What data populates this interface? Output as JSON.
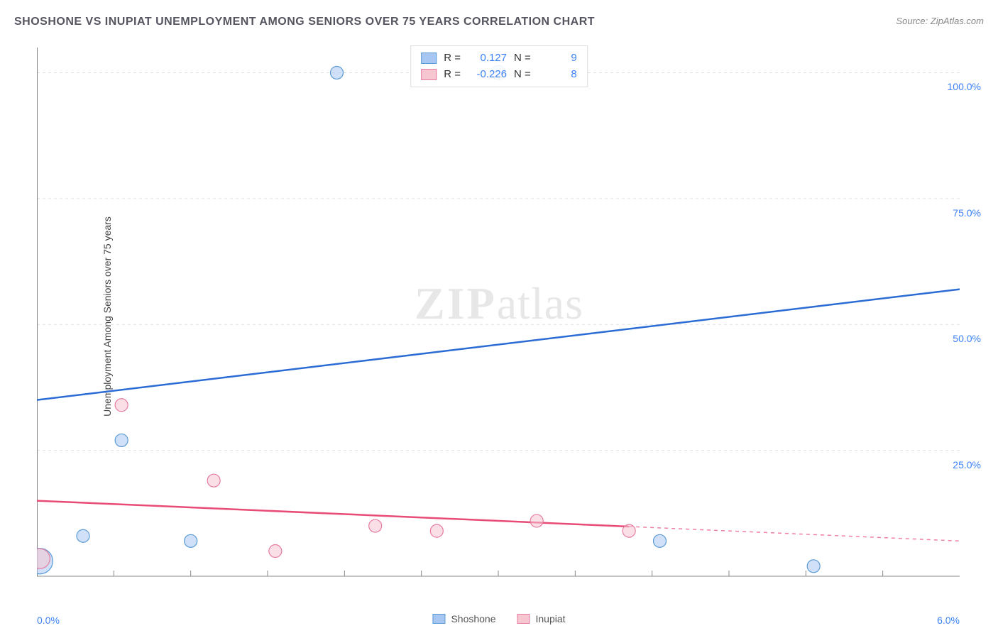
{
  "title": "SHOSHONE VS INUPIAT UNEMPLOYMENT AMONG SENIORS OVER 75 YEARS CORRELATION CHART",
  "source_label": "Source:",
  "source_name": "ZipAtlas.com",
  "ylabel": "Unemployment Among Seniors over 75 years",
  "watermark_zip": "ZIP",
  "watermark_atlas": "atlas",
  "chart": {
    "type": "scatter-correlation",
    "background_color": "#ffffff",
    "grid_color": "#e0e0e0",
    "axis_color": "#888888",
    "xaxis": {
      "min": 0.0,
      "max": 6.0,
      "tick_positions": [
        0.5,
        1.0,
        1.5,
        2.0,
        2.5,
        3.0,
        3.5,
        4.0,
        4.5,
        5.0,
        5.5
      ],
      "label_left": "0.0%",
      "label_right": "6.0%",
      "label_color": "#3b82f6",
      "label_fontsize": 14
    },
    "yaxis": {
      "min": 0.0,
      "max": 105.0,
      "grid_positions": [
        25.0,
        50.0,
        75.0,
        100.0
      ],
      "tick_labels": [
        "25.0%",
        "50.0%",
        "75.0%",
        "100.0%"
      ],
      "label_color": "#3b82f6",
      "label_fontsize": 14
    },
    "series": [
      {
        "name": "Shoshone",
        "fill_color": "#a7c7f2",
        "stroke_color": "#5b9bd5",
        "line_color": "#2b6cd4",
        "line_width": 2.5,
        "marker_radius": 9,
        "marker_opacity": 0.55,
        "trend": {
          "y_at_xmin": 35.0,
          "y_at_xmax": 57.0,
          "solid_until_x": 6.0
        },
        "points": [
          {
            "x": 0.02,
            "y": 3.0,
            "r": 18
          },
          {
            "x": 0.3,
            "y": 8.0,
            "r": 9
          },
          {
            "x": 0.55,
            "y": 27.0,
            "r": 9
          },
          {
            "x": 1.0,
            "y": 7.0,
            "r": 9
          },
          {
            "x": 1.95,
            "y": 100.0,
            "r": 9
          },
          {
            "x": 3.0,
            "y": 100.0,
            "r": 10
          },
          {
            "x": 4.05,
            "y": 7.0,
            "r": 9
          },
          {
            "x": 5.05,
            "y": 2.0,
            "r": 9
          }
        ]
      },
      {
        "name": "Inupiat",
        "fill_color": "#f6c6d1",
        "stroke_color": "#e57ba0",
        "line_color": "#e94b77",
        "line_width": 2.5,
        "marker_radius": 9,
        "marker_opacity": 0.55,
        "trend": {
          "y_at_xmin": 15.0,
          "y_at_xmax": 7.0,
          "solid_until_x": 3.85
        },
        "points": [
          {
            "x": 0.02,
            "y": 3.5,
            "r": 14
          },
          {
            "x": 0.55,
            "y": 34.0,
            "r": 9
          },
          {
            "x": 1.15,
            "y": 19.0,
            "r": 9
          },
          {
            "x": 1.55,
            "y": 5.0,
            "r": 9
          },
          {
            "x": 2.2,
            "y": 10.0,
            "r": 9
          },
          {
            "x": 2.6,
            "y": 9.0,
            "r": 9
          },
          {
            "x": 3.25,
            "y": 11.0,
            "r": 9
          },
          {
            "x": 3.85,
            "y": 9.0,
            "r": 9
          }
        ]
      }
    ],
    "stats": [
      {
        "series": "Shoshone",
        "R_label": "R =",
        "R": "0.127",
        "N_label": "N =",
        "N": "9"
      },
      {
        "series": "Inupiat",
        "R_label": "R =",
        "R": "-0.226",
        "N_label": "N =",
        "N": "8"
      }
    ],
    "legend_bottom": [
      {
        "label": "Shoshone"
      },
      {
        "label": "Inupiat"
      }
    ]
  }
}
